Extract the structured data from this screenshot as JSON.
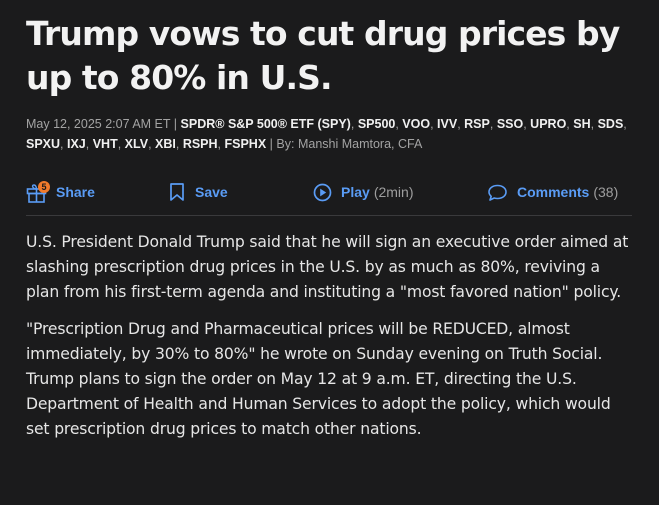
{
  "article": {
    "headline": "Trump vows to cut drug prices by up to 80% in U.S.",
    "date": "May 12, 2025 2:07 AM ET",
    "separator": "|",
    "tickers": [
      "SPDR® S&P 500® ETF (SPY)",
      "SP500",
      "VOO",
      "IVV",
      "RSP",
      "SSO",
      "UPRO",
      "SH",
      "SDS",
      "SPXU",
      "IXJ",
      "VHT",
      "XLV",
      "XBI",
      "RSPH",
      "FSPHX"
    ],
    "byline_prefix": "By:",
    "author": "Manshi Mamtora",
    "author_suffix": "CFA",
    "paragraphs": [
      "U.S. President Donald Trump said that he will sign an executive order aimed at slashing prescription drug prices in the U.S. by as much as 80%, reviving a plan from his first-term agenda and instituting a \"most favored nation\" policy.",
      "\"Prescription Drug and Pharmaceutical prices will be REDUCED, almost immediately, by 30% to 80%\" he wrote on Sunday evening on Truth Social. Trump plans to sign the order on May 12 at 9 a.m. ET, directing the U.S. Department of Health and Human Services to adopt the policy, which would set prescription drug prices to match other nations."
    ]
  },
  "toolbar": {
    "share": {
      "label": "Share",
      "badge": "5",
      "icon": "gift-icon"
    },
    "save": {
      "label": "Save",
      "icon": "bookmark-icon"
    },
    "play": {
      "label": "Play",
      "duration": "(2min)",
      "icon": "play-icon"
    },
    "comments": {
      "label": "Comments",
      "count": "(38)",
      "icon": "comment-icon"
    }
  },
  "colors": {
    "background": "#1b1b1c",
    "accent": "#5a9cf5",
    "badge": "#f07a2b"
  }
}
